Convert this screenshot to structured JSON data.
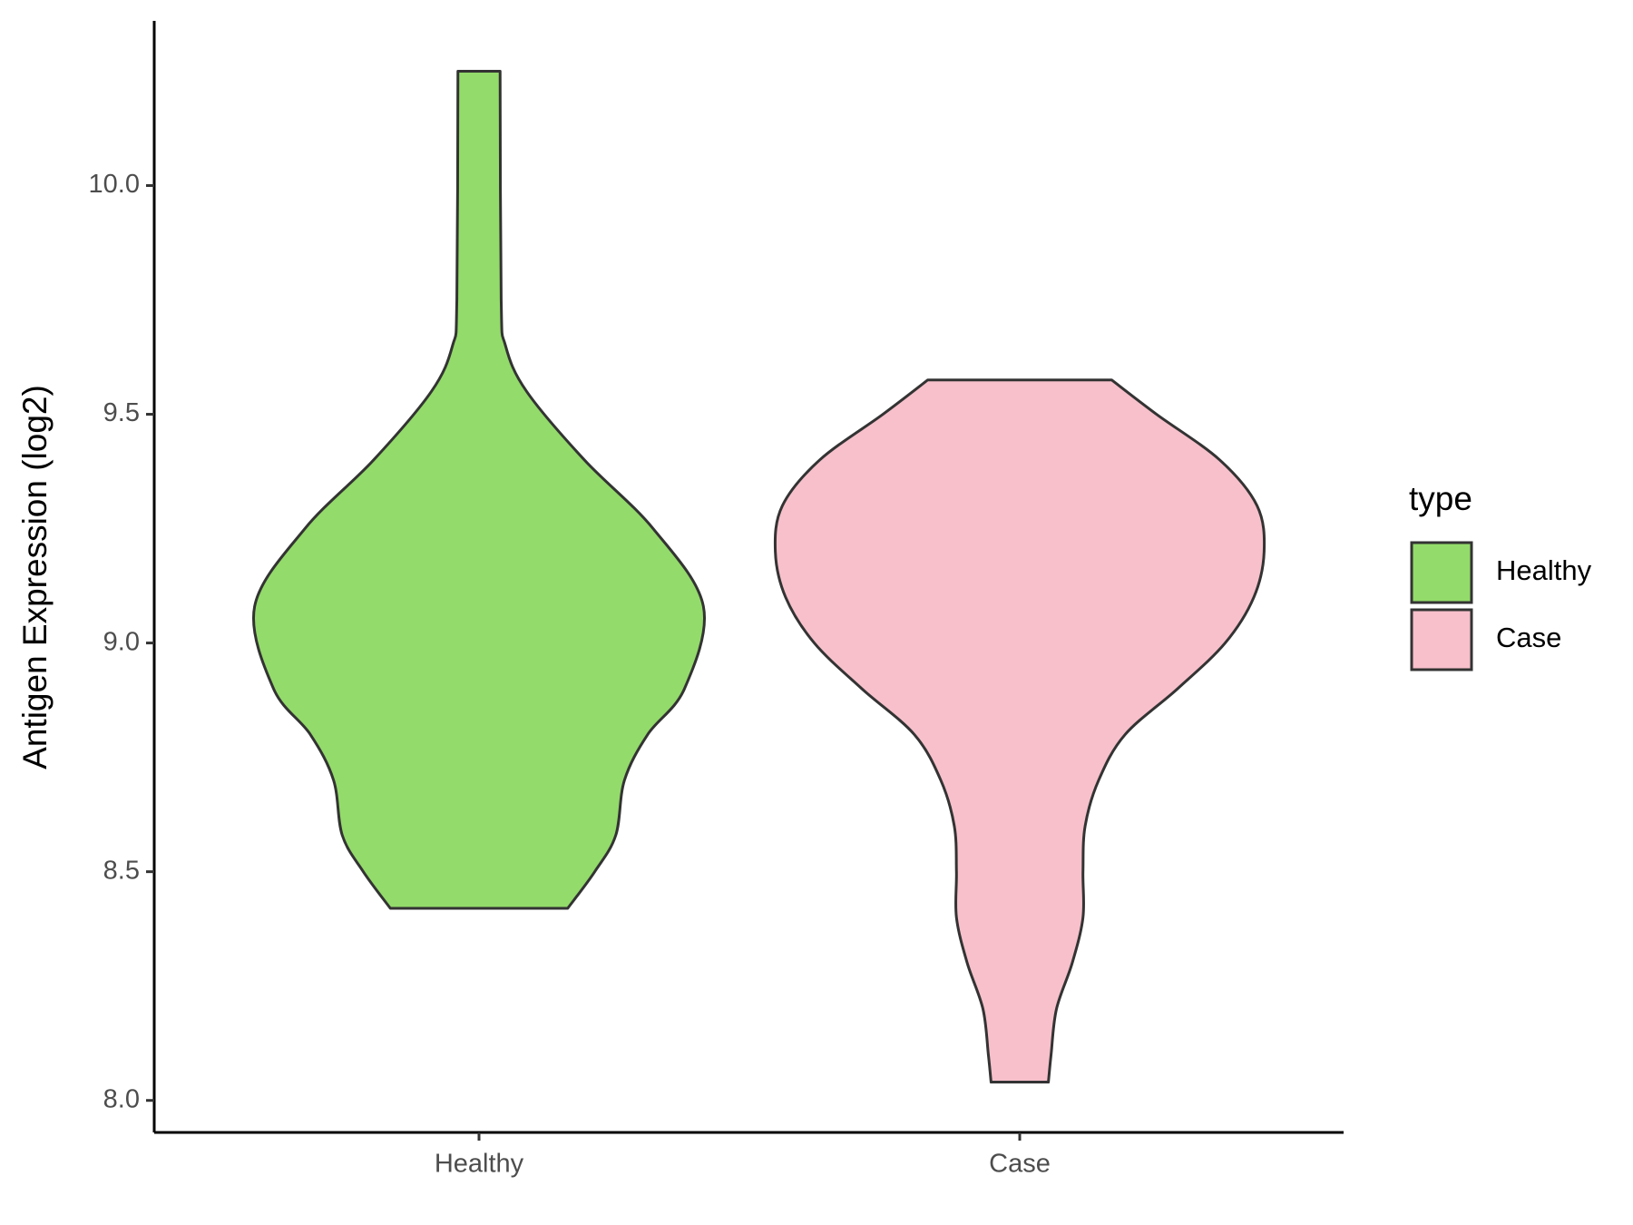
{
  "chart_data": {
    "type": "violin",
    "y_label": "Antigen Expression (log2)",
    "categories": [
      "Healthy",
      "Case"
    ],
    "legend_title": "type",
    "legend_position": "right",
    "ylim": [
      7.93,
      10.36
    ],
    "yticks": [
      {
        "value": 8,
        "label": "8.0"
      },
      8.5,
      {
        "value": 9,
        "label": "9.0"
      },
      9.5,
      {
        "value": 10,
        "label": "10.0"
      }
    ],
    "series": [
      {
        "name": "Healthy",
        "color": "#93db6a",
        "y": [
          10.25,
          9.75,
          9.65,
          9.55,
          9.4,
          9.25,
          9.08,
          8.9,
          8.8,
          8.7,
          8.58,
          8.5,
          8.42
        ],
        "width": [
          0.039,
          0.041,
          0.049,
          0.088,
          0.195,
          0.322,
          0.415,
          0.38,
          0.312,
          0.269,
          0.253,
          0.214,
          0.164
        ]
      },
      {
        "name": "Case",
        "color": "#f7c0cb",
        "y": [
          9.575,
          9.5,
          9.4,
          9.3,
          9.2,
          9.1,
          9.0,
          8.9,
          8.8,
          8.7,
          8.6,
          8.5,
          8.4,
          8.3,
          8.2,
          8.1,
          8.04
        ],
        "width": [
          0.17,
          0.253,
          0.37,
          0.439,
          0.452,
          0.433,
          0.38,
          0.292,
          0.195,
          0.146,
          0.121,
          0.117,
          0.117,
          0.097,
          0.068,
          0.058,
          0.053
        ]
      }
    ]
  }
}
